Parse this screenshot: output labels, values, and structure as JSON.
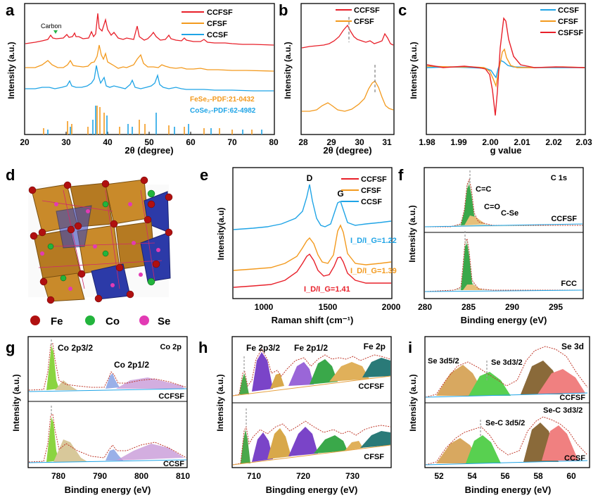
{
  "figure": {
    "panels": {
      "a": {
        "letter": "a",
        "xlabel": "2θ (degree)",
        "ylabel": "Intensity (a.u.)",
        "xticks": [
          "20",
          "30",
          "40",
          "50",
          "60",
          "70",
          "80"
        ],
        "annotation": "Carbon",
        "legend": [
          "CCFSF",
          "CFSF",
          "CCSF"
        ],
        "pdf_labels": [
          "FeSe₂-PDF:21-0432",
          "CoSe₂-PDF:62-4982"
        ]
      },
      "b": {
        "letter": "b",
        "xlabel": "2θ (degree)",
        "ylabel": "Intensity (a.u.)",
        "xticks": [
          "28",
          "29",
          "30",
          "31"
        ],
        "legend": [
          "CCFSF",
          "CFSF"
        ]
      },
      "c": {
        "letter": "c",
        "xlabel": "g value",
        "ylabel": "Intensity (a.u.)",
        "xticks": [
          "1.98",
          "1.99",
          "2.00",
          "2.01",
          "2.02",
          "2.03"
        ],
        "legend": [
          "CCSF",
          "CFSF",
          "CSFSF"
        ]
      },
      "d": {
        "letter": "d",
        "legend": [
          "Fe",
          "Co",
          "Se"
        ]
      },
      "e": {
        "letter": "e",
        "xlabel": "Raman shift (cm⁻¹)",
        "ylabel": "Intensity(a.u)",
        "xticks": [
          "1000",
          "1500",
          "2000"
        ],
        "peaks": [
          "D",
          "G"
        ],
        "legend": [
          "CCFSF",
          "CFSF",
          "CCSF"
        ],
        "ratios": [
          "I_D/I_G=1.22",
          "I_D/I_G=1.39",
          "I_D/I_G=1.41"
        ]
      },
      "f": {
        "letter": "f",
        "title": "C 1s",
        "xlabel": "Binding energy (eV)",
        "ylabel": "Intensity (a.u.)",
        "xticks": [
          "280",
          "285",
          "290",
          "295"
        ],
        "peak_labels": [
          "C=C",
          "C=O",
          "C-Se"
        ],
        "samples": [
          "CCFSF",
          "FCC"
        ]
      },
      "g": {
        "letter": "g",
        "title": "Co 2p",
        "xlabel": "Binding energy (eV)",
        "ylabel": "Intensity (a.u.)",
        "xticks": [
          "780",
          "790",
          "800",
          "810"
        ],
        "peak_labels": [
          "Co 2p3/2",
          "Co 2p1/2"
        ],
        "samples": [
          "CCFSF",
          "CCSF"
        ]
      },
      "h": {
        "letter": "h",
        "title": "Fe 2p",
        "xlabel": "Bingding energy (eV)",
        "ylabel": "Intensity (a.u.)",
        "xticks": [
          "710",
          "720",
          "730"
        ],
        "peak_labels": [
          "Fe 2p3/2",
          "Fe 2p1/2"
        ],
        "samples": [
          "CCFSF",
          "CFSF"
        ]
      },
      "i": {
        "letter": "i",
        "title": "Se 3d",
        "xlabel": "Binding energy (eV)",
        "ylabel": "Intensity (a.u.)",
        "xticks": [
          "52",
          "54",
          "56",
          "58",
          "60"
        ],
        "peak_labels": [
          "Se 3d5/2",
          "Se 3d3/2",
          "Se-C 3d5/2",
          "Se-C 3d3/2"
        ],
        "samples": [
          "CCFSF",
          "CCSF"
        ]
      }
    },
    "colors": {
      "red": "#e8202a",
      "orange": "#f39a1e",
      "blue": "#1fa4e6"
    }
  }
}
